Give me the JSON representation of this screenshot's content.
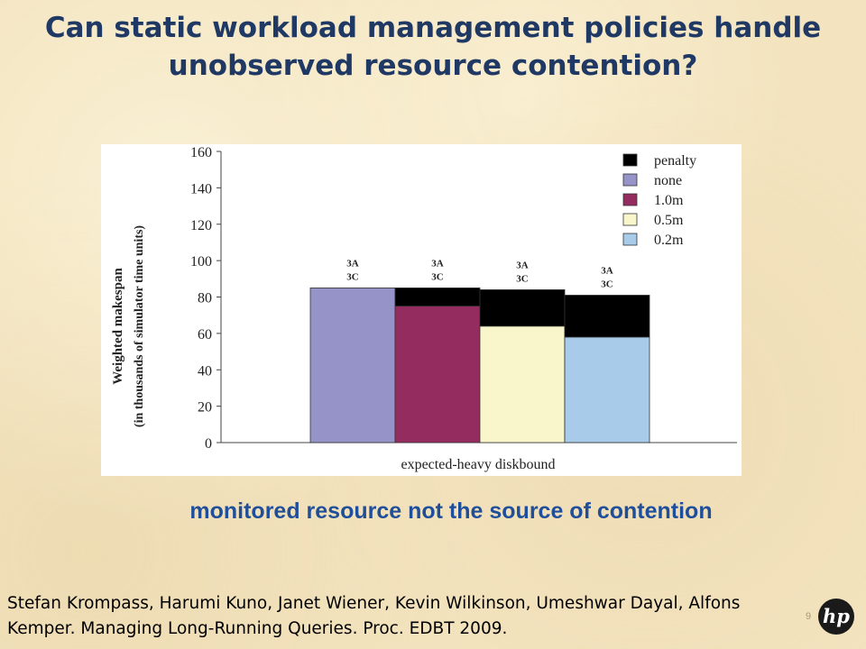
{
  "slide": {
    "title_line1": "Can static workload management policies handle",
    "title_line2": "unobserved resource contention?",
    "subtitle": "monitored resource not the source of contention",
    "citation_line1": "Stefan Krompass, Harumi Kuno, Janet Wiener, Kevin Wilkinson, Umeshwar Dayal, Alfons",
    "citation_line2": "Kemper. Managing Long-Running Queries. Proc. EDBT 2009.",
    "page_number": "9",
    "logo_text": "hp",
    "logo_icon": "hp-logo-icon"
  },
  "chart_data": {
    "type": "bar",
    "stacked": true,
    "title": "",
    "xlabel": "expected-heavy diskbound",
    "ylabel": "Weighted makespan",
    "ylabel_sub": "(in thousands of simulator time units)",
    "ylim": [
      0,
      160
    ],
    "yticks": [
      0,
      20,
      40,
      60,
      80,
      100,
      120,
      140,
      160
    ],
    "grid": false,
    "legend_position": "top-right",
    "legend": [
      {
        "label": "penalty",
        "color": "#000000"
      },
      {
        "label": "none",
        "color": "#9693c9"
      },
      {
        "label": "1.0m",
        "color": "#952c5f"
      },
      {
        "label": "0.5m",
        "color": "#faf6cc"
      },
      {
        "label": "0.2m",
        "color": "#a7cbe8"
      }
    ],
    "bars": [
      {
        "series": "none",
        "base": 85,
        "penalty": 0,
        "color": "#9693c9",
        "label_top": "3A",
        "label_bottom": "3C"
      },
      {
        "series": "1.0m",
        "base": 75,
        "penalty": 10,
        "color": "#952c5f",
        "label_top": "3A",
        "label_bottom": "3C"
      },
      {
        "series": "0.5m",
        "base": 64,
        "penalty": 20,
        "color": "#faf6cc",
        "label_top": "3A",
        "label_bottom": "3C"
      },
      {
        "series": "0.2m",
        "base": 58,
        "penalty": 23,
        "color": "#a7cbe8",
        "label_top": "3A",
        "label_bottom": "3C"
      }
    ]
  }
}
